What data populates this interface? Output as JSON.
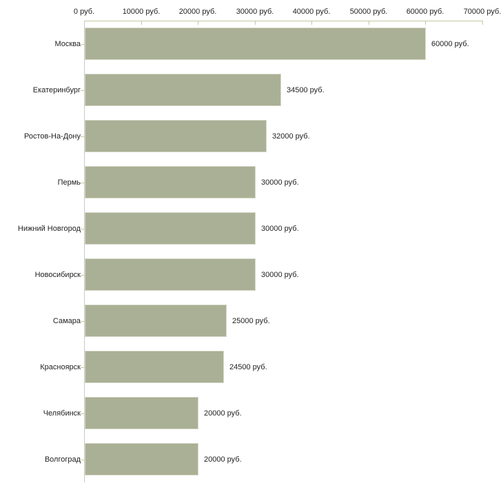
{
  "chart_data": {
    "type": "bar",
    "orientation": "horizontal",
    "title": "",
    "xlabel": "",
    "ylabel": "",
    "unit": "руб.",
    "xlim": [
      0,
      70000
    ],
    "grid": false,
    "legend": null,
    "x_tick_values": [
      0,
      10000,
      20000,
      30000,
      40000,
      50000,
      60000,
      70000
    ],
    "x_tick_labels": [
      "0 руб.",
      "10000 руб.",
      "20000 руб.",
      "30000 руб.",
      "40000 руб.",
      "50000 руб.",
      "60000 руб.",
      "70000 руб."
    ],
    "categories": [
      "Москва",
      "Екатеринбург",
      "Ростов-На-Дону",
      "Пермь",
      "Нижний Новгород",
      "Новосибирск",
      "Самара",
      "Красноярск",
      "Челябинск",
      "Волгоград"
    ],
    "values": [
      60000,
      34500,
      32000,
      30000,
      30000,
      30000,
      25000,
      24500,
      20000,
      20000
    ],
    "value_labels": [
      "60000 руб.",
      "34500 руб.",
      "32000 руб.",
      "30000 руб.",
      "30000 руб.",
      "30000 руб.",
      "25000 руб.",
      "24500 руб.",
      "20000 руб.",
      "20000 руб."
    ],
    "colors": {
      "bar_fill": "#aab095",
      "bar_border": "#d6d8c9",
      "x_axis": "#c6c6a2",
      "y_axis": "#c9c9c9",
      "text": "#222222",
      "background": "#ffffff"
    }
  }
}
